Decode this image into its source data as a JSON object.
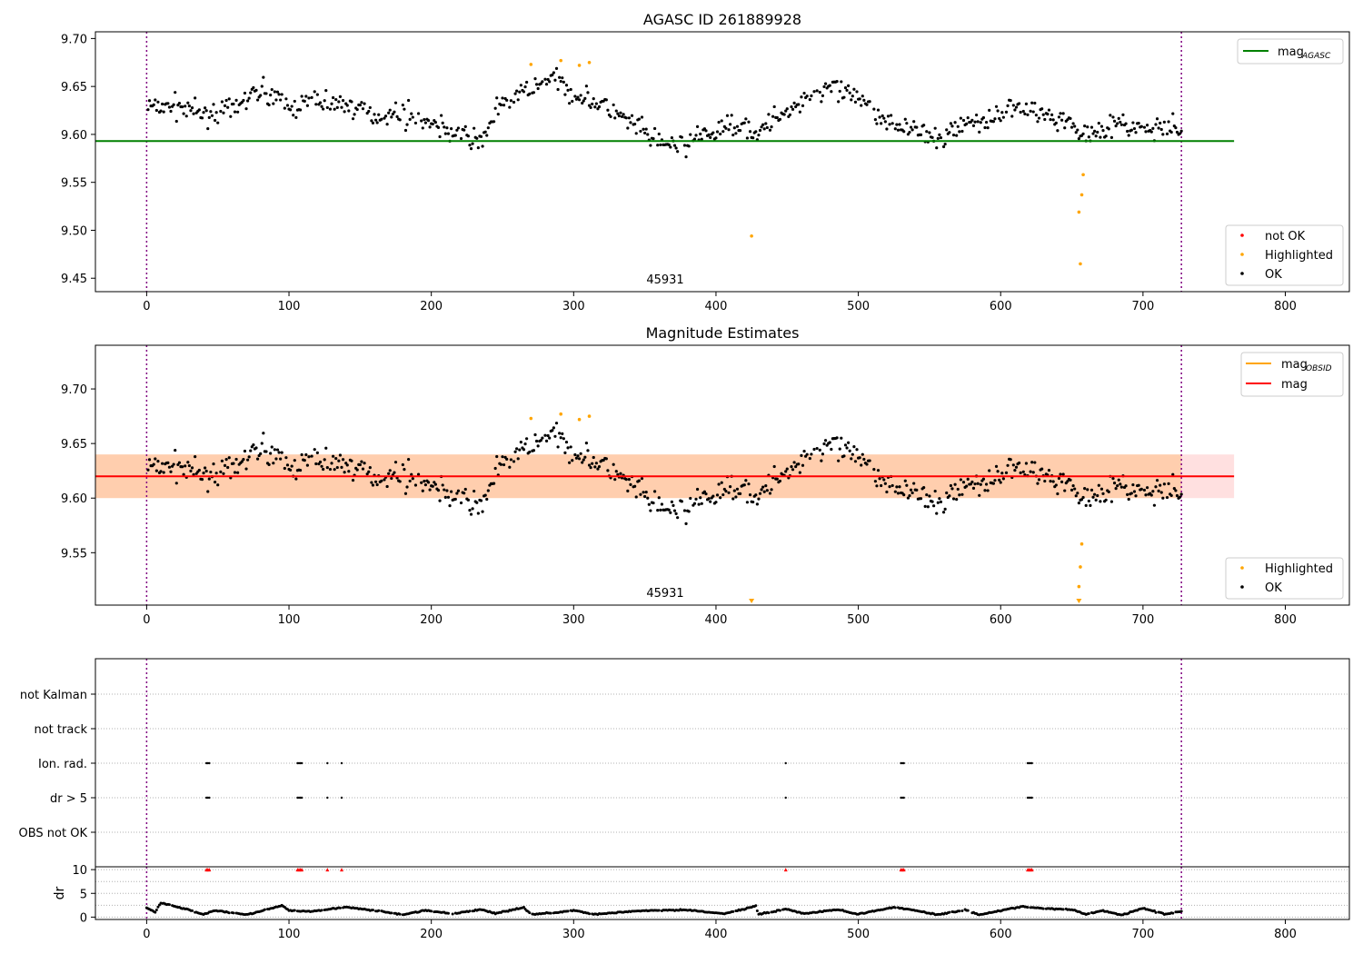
{
  "chart_data": [
    {
      "type": "scatter",
      "title": "AGASC ID 261889928",
      "annotation": "45931",
      "xlim": [
        -36,
        845
      ],
      "ylim": [
        9.436,
        9.707
      ],
      "xticks": [
        0,
        100,
        200,
        300,
        400,
        500,
        600,
        700,
        800
      ],
      "yticks": [
        9.45,
        9.5,
        9.55,
        9.6,
        9.65,
        9.7
      ],
      "ytick_labels": [
        "9.45",
        "9.50",
        "9.55",
        "9.60",
        "9.65",
        "9.70"
      ],
      "vlines": [
        0,
        727
      ],
      "hlines": [
        {
          "name": "mag_AGASC",
          "y": 9.593,
          "x_range": [
            -36,
            764
          ],
          "color": "#008000"
        }
      ],
      "legend_top": [
        {
          "name": "mag_AGASC",
          "label": "mag",
          "sub": "AGASC",
          "color": "#008000"
        }
      ],
      "legend_bottom": [
        {
          "name": "not OK",
          "color": "#ff0000"
        },
        {
          "name": "Highlighted",
          "color": "#ffa500"
        },
        {
          "name": "OK",
          "color": "#000000"
        }
      ],
      "highlighted_points": [
        [
          270,
          9.673
        ],
        [
          291,
          9.677
        ],
        [
          304,
          9.672
        ],
        [
          311,
          9.675
        ],
        [
          425,
          9.494
        ],
        [
          655,
          9.519
        ],
        [
          656,
          9.465
        ],
        [
          657,
          9.537
        ],
        [
          658,
          9.558
        ]
      ],
      "ok_series_anchors": [
        [
          0,
          9.628
        ],
        [
          20,
          9.63
        ],
        [
          40,
          9.622
        ],
        [
          60,
          9.625
        ],
        [
          80,
          9.648
        ],
        [
          100,
          9.628
        ],
        [
          120,
          9.635
        ],
        [
          140,
          9.632
        ],
        [
          160,
          9.62
        ],
        [
          180,
          9.622
        ],
        [
          200,
          9.612
        ],
        [
          220,
          9.6
        ],
        [
          235,
          9.592
        ],
        [
          245,
          9.625
        ],
        [
          265,
          9.645
        ],
        [
          285,
          9.658
        ],
        [
          300,
          9.642
        ],
        [
          320,
          9.63
        ],
        [
          340,
          9.612
        ],
        [
          360,
          9.59
        ],
        [
          375,
          9.588
        ],
        [
          395,
          9.6
        ],
        [
          410,
          9.61
        ],
        [
          420,
          9.612
        ],
        [
          430,
          9.6
        ],
        [
          440,
          9.615
        ],
        [
          460,
          9.635
        ],
        [
          480,
          9.65
        ],
        [
          500,
          9.635
        ],
        [
          520,
          9.615
        ],
        [
          540,
          9.605
        ],
        [
          555,
          9.592
        ],
        [
          570,
          9.61
        ],
        [
          590,
          9.615
        ],
        [
          610,
          9.628
        ],
        [
          630,
          9.622
        ],
        [
          645,
          9.615
        ],
        [
          660,
          9.6
        ],
        [
          680,
          9.612
        ],
        [
          700,
          9.605
        ],
        [
          727,
          9.605
        ]
      ]
    },
    {
      "type": "scatter",
      "title": "Magnitude Estimates",
      "annotation": "45931",
      "xlim": [
        -36,
        845
      ],
      "ylim": [
        9.502,
        9.74
      ],
      "xticks": [
        0,
        100,
        200,
        300,
        400,
        500,
        600,
        700,
        800
      ],
      "yticks": [
        9.55,
        9.6,
        9.65,
        9.7
      ],
      "ytick_labels": [
        "9.55",
        "9.60",
        "9.65",
        "9.70"
      ],
      "vlines": [
        0,
        727
      ],
      "hlines": [
        {
          "name": "mag",
          "y": 9.62,
          "x_range": [
            -36,
            764
          ],
          "color": "#ff0000"
        }
      ],
      "bands": [
        {
          "name": "mag_OBSID band",
          "y0": 9.6,
          "y1": 9.64,
          "x_range": [
            -36,
            727
          ],
          "color": "#ffa500",
          "opacity": 0.22
        },
        {
          "name": "mag band",
          "y0": 9.6,
          "y1": 9.64,
          "x_range": [
            -36,
            764
          ],
          "color": "#ff0000",
          "opacity": 0.12
        }
      ],
      "legend_top": [
        {
          "name": "mag_OBSID",
          "label": "mag",
          "sub": "OBSID",
          "color": "#ffa500"
        },
        {
          "name": "mag",
          "label": "mag",
          "sub": "",
          "color": "#ff0000"
        }
      ],
      "legend_bottom": [
        {
          "name": "Highlighted",
          "color": "#ffa500"
        },
        {
          "name": "OK",
          "color": "#000000"
        }
      ],
      "highlighted_points": [
        [
          270,
          9.673
        ],
        [
          291,
          9.677
        ],
        [
          304,
          9.672
        ],
        [
          311,
          9.675
        ],
        [
          655,
          9.519
        ],
        [
          656,
          9.537
        ],
        [
          657,
          9.558
        ]
      ],
      "offscale_markers": [
        425,
        655
      ],
      "ok_series_anchors": [
        [
          0,
          9.628
        ],
        [
          20,
          9.63
        ],
        [
          40,
          9.622
        ],
        [
          60,
          9.625
        ],
        [
          80,
          9.648
        ],
        [
          100,
          9.628
        ],
        [
          120,
          9.635
        ],
        [
          140,
          9.632
        ],
        [
          160,
          9.62
        ],
        [
          180,
          9.622
        ],
        [
          200,
          9.612
        ],
        [
          220,
          9.6
        ],
        [
          235,
          9.592
        ],
        [
          245,
          9.625
        ],
        [
          265,
          9.645
        ],
        [
          285,
          9.658
        ],
        [
          300,
          9.642
        ],
        [
          320,
          9.63
        ],
        [
          340,
          9.612
        ],
        [
          360,
          9.59
        ],
        [
          375,
          9.588
        ],
        [
          395,
          9.6
        ],
        [
          410,
          9.61
        ],
        [
          420,
          9.612
        ],
        [
          430,
          9.6
        ],
        [
          440,
          9.615
        ],
        [
          460,
          9.635
        ],
        [
          480,
          9.65
        ],
        [
          500,
          9.635
        ],
        [
          520,
          9.615
        ],
        [
          540,
          9.605
        ],
        [
          555,
          9.592
        ],
        [
          570,
          9.61
        ],
        [
          590,
          9.615
        ],
        [
          610,
          9.628
        ],
        [
          630,
          9.622
        ],
        [
          645,
          9.615
        ],
        [
          660,
          9.6
        ],
        [
          680,
          9.612
        ],
        [
          700,
          9.605
        ],
        [
          727,
          9.605
        ]
      ]
    },
    {
      "type": "scatter",
      "title": "",
      "xlim": [
        -36,
        845
      ],
      "categories": [
        "not Kalman",
        "not track",
        "Ion. rad.",
        "dr > 5",
        "OBS not OK"
      ],
      "vlines": [
        0,
        727
      ],
      "flag_x": [
        42,
        43,
        44,
        106,
        107,
        108,
        109,
        127,
        137,
        449,
        530,
        531,
        532,
        619,
        620,
        621,
        622
      ],
      "flagged_categories": [
        "Ion. rad.",
        "dr > 5"
      ]
    },
    {
      "type": "scatter",
      "title": "",
      "ylabel": "dr",
      "xlim": [
        -36,
        845
      ],
      "ylim": [
        -0.5,
        10.6
      ],
      "xticks": [
        0,
        100,
        200,
        300,
        400,
        500,
        600,
        700,
        800
      ],
      "yticks": [
        0,
        5,
        10
      ],
      "ytick_labels": [
        "0",
        "5",
        "10"
      ],
      "vlines": [
        0,
        727
      ],
      "gridlines": [
        0,
        2.5,
        5,
        7.5,
        10
      ],
      "flag_markers_y": 10,
      "flag_x": [
        42,
        43,
        44,
        106,
        107,
        108,
        109,
        127,
        137,
        449,
        530,
        531,
        532,
        619,
        620,
        621,
        622
      ],
      "dr_anchors": [
        [
          0,
          1.9
        ],
        [
          6,
          1.1
        ],
        [
          10,
          3.0
        ],
        [
          25,
          1.9
        ],
        [
          40,
          0.6
        ],
        [
          48,
          1.4
        ],
        [
          70,
          0.5
        ],
        [
          95,
          2.4
        ],
        [
          100,
          1.4
        ],
        [
          115,
          1.2
        ],
        [
          140,
          2.1
        ],
        [
          165,
          1.2
        ],
        [
          180,
          0.5
        ],
        [
          195,
          1.4
        ],
        [
          215,
          0.7
        ],
        [
          235,
          1.6
        ],
        [
          245,
          0.8
        ],
        [
          265,
          2.0
        ],
        [
          270,
          0.6
        ],
        [
          290,
          1.0
        ],
        [
          300,
          1.4
        ],
        [
          315,
          0.6
        ],
        [
          345,
          1.3
        ],
        [
          380,
          1.5
        ],
        [
          405,
          0.7
        ],
        [
          420,
          1.7
        ],
        [
          428,
          2.4
        ],
        [
          430,
          0.6
        ],
        [
          450,
          1.7
        ],
        [
          462,
          0.7
        ],
        [
          485,
          1.6
        ],
        [
          500,
          0.6
        ],
        [
          525,
          2.1
        ],
        [
          535,
          1.7
        ],
        [
          555,
          0.5
        ],
        [
          575,
          1.5
        ],
        [
          585,
          0.5
        ],
        [
          600,
          1.4
        ],
        [
          615,
          2.2
        ],
        [
          630,
          1.8
        ],
        [
          650,
          1.6
        ],
        [
          660,
          0.6
        ],
        [
          672,
          1.4
        ],
        [
          685,
          0.4
        ],
        [
          700,
          1.9
        ],
        [
          715,
          0.6
        ],
        [
          727,
          1.2
        ]
      ]
    }
  ]
}
